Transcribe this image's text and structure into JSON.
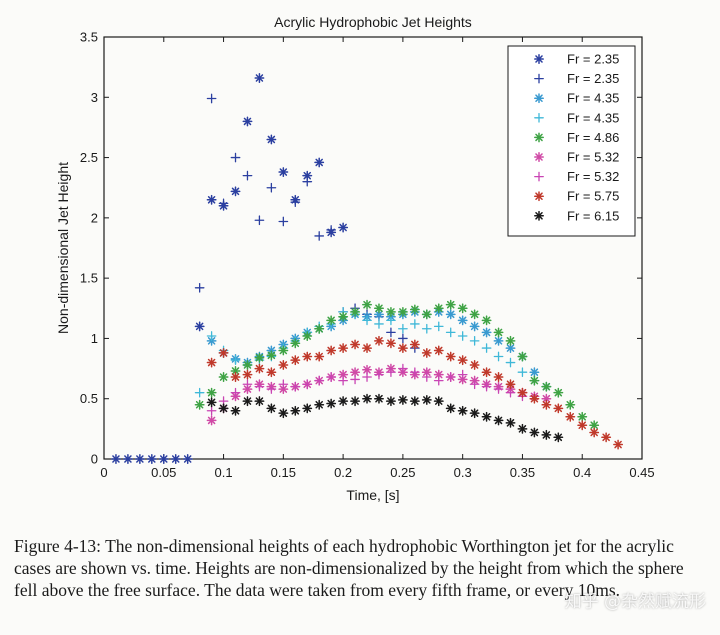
{
  "chart_data": {
    "type": "scatter",
    "title": "Acrylic Hydrophobic Jet Heights",
    "xlabel": "Time, [s]",
    "ylabel": "Non-dimensional Jet Height",
    "xlim": [
      0,
      0.45
    ],
    "ylim": [
      0,
      3.5
    ],
    "xticks": [
      "0",
      "0.05",
      "0.1",
      "0.15",
      "0.2",
      "0.25",
      "0.3",
      "0.35",
      "0.4",
      "0.45"
    ],
    "yticks": [
      "0",
      "0.5",
      "1",
      "1.5",
      "2",
      "2.5",
      "3",
      "3.5"
    ],
    "grid": false,
    "legend_position": "top-right",
    "series": [
      {
        "name": "Fr = 2.35",
        "marker": "star",
        "color": "#2b3fa0",
        "x": [
          0.01,
          0.02,
          0.03,
          0.04,
          0.05,
          0.06,
          0.07,
          0.08,
          0.09,
          0.1,
          0.11,
          0.12,
          0.13,
          0.14,
          0.15,
          0.16,
          0.17,
          0.18,
          0.19,
          0.2
        ],
        "y": [
          0,
          0,
          0,
          0,
          0,
          0,
          0,
          1.1,
          2.15,
          2.1,
          2.22,
          2.8,
          3.16,
          2.65,
          2.38,
          2.15,
          2.35,
          2.46,
          1.88,
          1.92
        ]
      },
      {
        "name": "Fr = 2.35",
        "marker": "plus",
        "color": "#2b3fa0",
        "x": [
          0.08,
          0.09,
          0.1,
          0.11,
          0.12,
          0.13,
          0.14,
          0.15,
          0.16,
          0.17,
          0.18,
          0.19,
          0.2,
          0.21,
          0.22,
          0.23,
          0.24,
          0.25,
          0.26
        ],
        "y": [
          1.42,
          2.99,
          2.12,
          2.5,
          2.35,
          1.98,
          2.25,
          1.97,
          2.13,
          2.3,
          1.85,
          1.9,
          1.22,
          1.25,
          1.2,
          1.18,
          1.05,
          1.0,
          0.92
        ]
      },
      {
        "name": "Fr = 4.35",
        "marker": "star",
        "color": "#3a9ad0",
        "x": [
          0.09,
          0.1,
          0.11,
          0.12,
          0.13,
          0.14,
          0.15,
          0.16,
          0.17,
          0.18,
          0.19,
          0.2,
          0.21,
          0.22,
          0.23,
          0.24,
          0.25,
          0.26,
          0.27,
          0.28,
          0.29,
          0.3,
          0.31,
          0.32,
          0.33,
          0.34,
          0.35,
          0.36,
          0.37
        ],
        "y": [
          0.98,
          0.88,
          0.83,
          0.8,
          0.85,
          0.9,
          0.95,
          1.0,
          1.05,
          1.08,
          1.1,
          1.15,
          1.2,
          1.18,
          1.2,
          1.18,
          1.2,
          1.22,
          1.2,
          1.22,
          1.2,
          1.15,
          1.1,
          1.05,
          0.98,
          0.92,
          0.85,
          0.72,
          0.6
        ]
      },
      {
        "name": "Fr = 4.35",
        "marker": "plus",
        "color": "#3fb8d8",
        "x": [
          0.08,
          0.09,
          0.1,
          0.11,
          0.12,
          0.13,
          0.14,
          0.15,
          0.16,
          0.17,
          0.18,
          0.19,
          0.2,
          0.21,
          0.22,
          0.23,
          0.24,
          0.25,
          0.26,
          0.27,
          0.28,
          0.29,
          0.3,
          0.31,
          0.32,
          0.33,
          0.34,
          0.35,
          0.36
        ],
        "y": [
          0.55,
          1.02,
          0.9,
          0.82,
          0.78,
          0.82,
          0.85,
          0.92,
          0.98,
          1.05,
          1.1,
          1.12,
          1.22,
          1.2,
          1.15,
          1.12,
          1.15,
          1.08,
          1.12,
          1.08,
          1.1,
          1.05,
          1.02,
          0.98,
          0.92,
          0.85,
          0.8,
          0.72,
          0.65
        ]
      },
      {
        "name": "Fr = 4.86",
        "marker": "star",
        "color": "#3fa345",
        "x": [
          0.08,
          0.09,
          0.1,
          0.11,
          0.12,
          0.13,
          0.14,
          0.15,
          0.16,
          0.17,
          0.18,
          0.19,
          0.2,
          0.21,
          0.22,
          0.23,
          0.24,
          0.25,
          0.26,
          0.27,
          0.28,
          0.29,
          0.3,
          0.31,
          0.32,
          0.33,
          0.34,
          0.35,
          0.36,
          0.37,
          0.38,
          0.39,
          0.4,
          0.41
        ],
        "y": [
          0.45,
          0.55,
          0.68,
          0.73,
          0.78,
          0.84,
          0.86,
          0.9,
          0.96,
          1.02,
          1.08,
          1.15,
          1.18,
          1.22,
          1.28,
          1.25,
          1.22,
          1.22,
          1.24,
          1.2,
          1.25,
          1.28,
          1.25,
          1.2,
          1.15,
          1.05,
          0.98,
          0.85,
          0.65,
          0.6,
          0.55,
          0.45,
          0.35,
          0.28
        ]
      },
      {
        "name": "Fr = 5.32",
        "marker": "star",
        "color": "#d04aa6",
        "x": [
          0.09,
          0.1,
          0.11,
          0.12,
          0.13,
          0.14,
          0.15,
          0.16,
          0.17,
          0.18,
          0.19,
          0.2,
          0.21,
          0.22,
          0.23,
          0.24,
          0.25,
          0.26,
          0.27,
          0.28,
          0.29,
          0.3,
          0.31,
          0.32,
          0.33,
          0.34,
          0.35,
          0.36,
          0.37
        ],
        "y": [
          0.32,
          0.42,
          0.52,
          0.58,
          0.62,
          0.6,
          0.58,
          0.6,
          0.62,
          0.65,
          0.68,
          0.7,
          0.72,
          0.74,
          0.72,
          0.75,
          0.72,
          0.7,
          0.72,
          0.7,
          0.68,
          0.66,
          0.65,
          0.62,
          0.6,
          0.58,
          0.55,
          0.52,
          0.5
        ]
      },
      {
        "name": "Fr = 5.32",
        "marker": "plus",
        "color": "#c944b4",
        "x": [
          0.09,
          0.1,
          0.11,
          0.12,
          0.13,
          0.14,
          0.15,
          0.16,
          0.17,
          0.18,
          0.19,
          0.2,
          0.21,
          0.22,
          0.23,
          0.24,
          0.25,
          0.26,
          0.27,
          0.28,
          0.29,
          0.3,
          0.31,
          0.32,
          0.33,
          0.34,
          0.35
        ],
        "y": [
          0.4,
          0.48,
          0.55,
          0.62,
          0.6,
          0.58,
          0.62,
          0.6,
          0.62,
          0.65,
          0.68,
          0.65,
          0.66,
          0.68,
          0.7,
          0.72,
          0.75,
          0.72,
          0.68,
          0.65,
          0.68,
          0.7,
          0.62,
          0.6,
          0.58,
          0.55,
          0.52
        ]
      },
      {
        "name": "Fr = 5.75",
        "marker": "star",
        "color": "#c0392b",
        "x": [
          0.09,
          0.1,
          0.11,
          0.12,
          0.13,
          0.14,
          0.15,
          0.16,
          0.17,
          0.18,
          0.19,
          0.2,
          0.21,
          0.22,
          0.23,
          0.24,
          0.25,
          0.26,
          0.27,
          0.28,
          0.29,
          0.3,
          0.31,
          0.32,
          0.33,
          0.34,
          0.35,
          0.36,
          0.37,
          0.38,
          0.39,
          0.4,
          0.41,
          0.42,
          0.43
        ],
        "y": [
          0.8,
          0.88,
          0.68,
          0.7,
          0.75,
          0.72,
          0.78,
          0.82,
          0.85,
          0.85,
          0.9,
          0.92,
          0.95,
          0.92,
          0.98,
          0.96,
          0.92,
          0.95,
          0.88,
          0.9,
          0.85,
          0.82,
          0.78,
          0.72,
          0.68,
          0.62,
          0.55,
          0.5,
          0.45,
          0.42,
          0.35,
          0.28,
          0.22,
          0.18,
          0.12
        ]
      },
      {
        "name": "Fr = 6.15",
        "marker": "star",
        "color": "#1a1a1a",
        "x": [
          0.09,
          0.1,
          0.11,
          0.12,
          0.13,
          0.14,
          0.15,
          0.16,
          0.17,
          0.18,
          0.19,
          0.2,
          0.21,
          0.22,
          0.23,
          0.24,
          0.25,
          0.26,
          0.27,
          0.28,
          0.29,
          0.3,
          0.31,
          0.32,
          0.33,
          0.34,
          0.35,
          0.36,
          0.37,
          0.38
        ],
        "y": [
          0.47,
          0.42,
          0.4,
          0.48,
          0.48,
          0.42,
          0.38,
          0.4,
          0.42,
          0.45,
          0.46,
          0.48,
          0.48,
          0.5,
          0.5,
          0.48,
          0.49,
          0.48,
          0.49,
          0.48,
          0.42,
          0.4,
          0.38,
          0.35,
          0.32,
          0.3,
          0.25,
          0.22,
          0.2,
          0.18
        ]
      }
    ]
  },
  "caption": "Figure 4-13: The non-dimensional heights of each hydrophobic Worthington jet for the acrylic cases are shown vs. time. Heights are non-dimensionalized by the height from which the sphere fell above the free surface. The data were taken from every fifth frame, or every 10ms.",
  "watermark": "知乎 @杂然赋流形"
}
